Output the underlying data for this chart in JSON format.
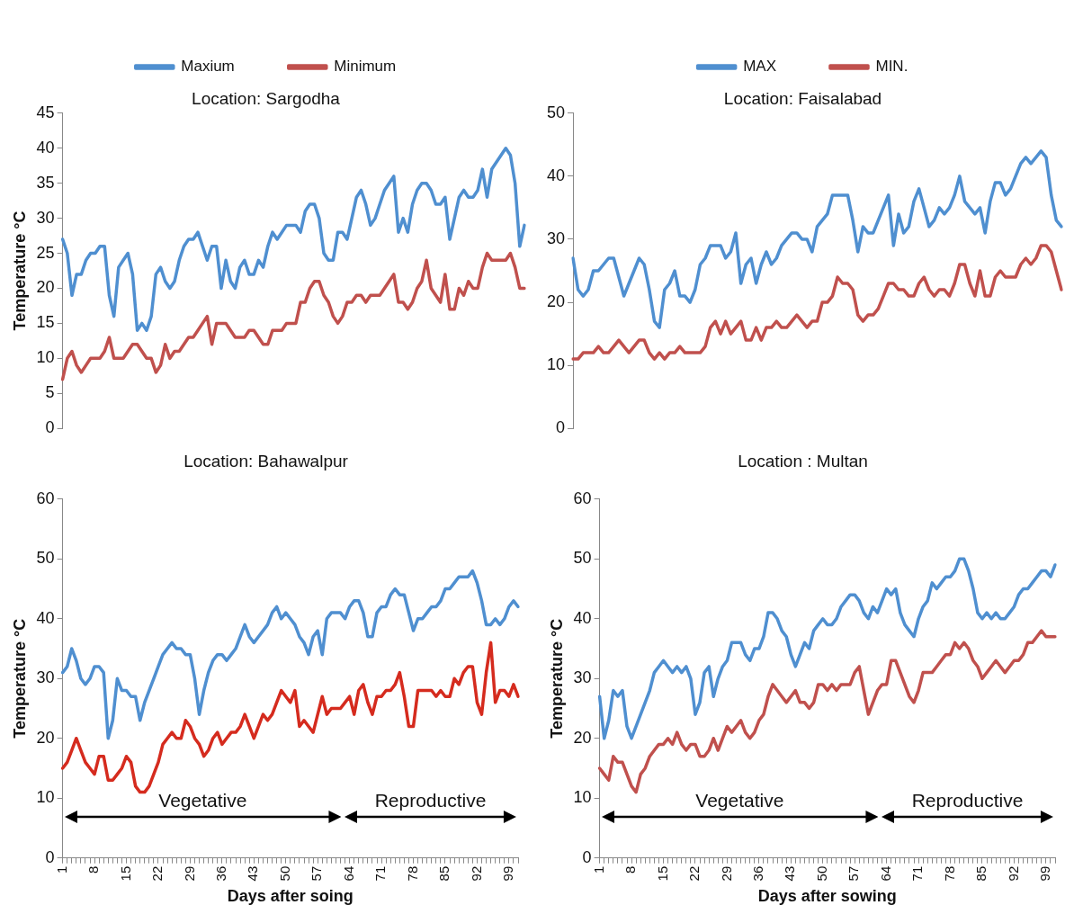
{
  "chart_data": [
    {
      "type": "line",
      "title": "Location: Sargodha",
      "ylabel": "Temperature °C",
      "legend": "top",
      "tick_labels": "y",
      "grid": false,
      "ylim": [
        0,
        45
      ],
      "yticks": [
        0,
        5,
        10,
        15,
        20,
        25,
        30,
        35,
        40,
        45
      ],
      "categories": [
        null,
        null,
        null,
        null,
        null,
        null,
        null,
        null,
        null,
        null,
        null,
        null,
        null,
        null,
        null,
        null,
        null,
        null,
        null,
        null,
        null,
        null,
        null,
        null,
        null,
        null,
        null,
        null,
        null,
        null,
        null,
        null,
        null,
        null,
        null,
        null,
        null,
        null,
        null,
        null,
        null,
        null,
        null,
        null,
        null,
        null,
        null,
        null,
        null,
        null,
        null,
        null,
        null,
        null,
        null,
        null,
        null,
        null,
        null,
        null,
        null,
        null,
        null,
        null,
        null,
        null,
        null,
        null,
        null,
        null,
        null,
        null,
        null,
        null,
        null,
        null,
        null,
        null,
        null,
        null,
        null,
        null,
        null,
        null,
        null,
        null,
        null,
        null,
        null,
        null,
        null,
        null,
        null,
        null,
        null,
        null,
        null,
        null,
        null,
        null
      ],
      "series": [
        {
          "name": "Maxium",
          "color": "#4f8fd0",
          "values": [
            27,
            25,
            19,
            22,
            22,
            24,
            25,
            25,
            26,
            26,
            19,
            16,
            23,
            24,
            25,
            22,
            14,
            15,
            14,
            16,
            22,
            23,
            21,
            20,
            21,
            24,
            26,
            27,
            27,
            28,
            26,
            24,
            26,
            26,
            20,
            24,
            21,
            20,
            23,
            24,
            22,
            22,
            24,
            23,
            26,
            28,
            27,
            28,
            29,
            29,
            29,
            28,
            31,
            32,
            32,
            30,
            25,
            24,
            24,
            28,
            28,
            27,
            30,
            33,
            34,
            32,
            29,
            30,
            32,
            34,
            35,
            36,
            28,
            30,
            28,
            32,
            34,
            35,
            35,
            34,
            32,
            32,
            33,
            27,
            30,
            33,
            34,
            33,
            33,
            34,
            37,
            33,
            37,
            38,
            39,
            40,
            39,
            35,
            26,
            29
          ]
        },
        {
          "name": "Minimum",
          "color": "#c0504d",
          "values": [
            7,
            10,
            11,
            9,
            8,
            9,
            10,
            10,
            10,
            11,
            13,
            10,
            10,
            10,
            11,
            12,
            12,
            11,
            10,
            10,
            8,
            9,
            12,
            10,
            11,
            11,
            12,
            13,
            13,
            14,
            15,
            16,
            12,
            15,
            15,
            15,
            14,
            13,
            13,
            13,
            14,
            14,
            13,
            12,
            12,
            14,
            14,
            14,
            15,
            15,
            15,
            18,
            18,
            20,
            21,
            21,
            19,
            18,
            16,
            15,
            16,
            18,
            18,
            19,
            19,
            18,
            19,
            19,
            19,
            20,
            21,
            22,
            18,
            18,
            17,
            18,
            20,
            21,
            24,
            20,
            19,
            18,
            22,
            17,
            17,
            20,
            19,
            21,
            20,
            20,
            23,
            25,
            24,
            24,
            24,
            24,
            25,
            23,
            20,
            20
          ]
        }
      ]
    },
    {
      "type": "line",
      "title": "Location: Faisalabad",
      "legend": "top",
      "tick_labels": "y",
      "grid": false,
      "ylim": [
        0,
        50
      ],
      "yticks": [
        0,
        10,
        20,
        30,
        40,
        50
      ],
      "categories": [
        null,
        null,
        null,
        null,
        null,
        null,
        null,
        null,
        null,
        null,
        null,
        null,
        null,
        null,
        null,
        null,
        null,
        null,
        null,
        null,
        null,
        null,
        null,
        null,
        null,
        null,
        null,
        null,
        null,
        null,
        null,
        null,
        null,
        null,
        null,
        null,
        null,
        null,
        null,
        null,
        null,
        null,
        null,
        null,
        null,
        null,
        null,
        null,
        null,
        null,
        null,
        null,
        null,
        null,
        null,
        null,
        null,
        null,
        null,
        null,
        null,
        null,
        null,
        null,
        null,
        null,
        null,
        null,
        null,
        null,
        null,
        null,
        null,
        null,
        null,
        null,
        null,
        null,
        null,
        null,
        null,
        null,
        null,
        null,
        null,
        null,
        null,
        null,
        null,
        null,
        null,
        null,
        null,
        null,
        null,
        null,
        null
      ],
      "series": [
        {
          "name": "MAX",
          "color": "#4f8fd0",
          "values": [
            27,
            22,
            21,
            22,
            25,
            25,
            26,
            27,
            27,
            24,
            21,
            23,
            25,
            27,
            26,
            22,
            17,
            16,
            22,
            23,
            25,
            21,
            21,
            20,
            22,
            26,
            27,
            29,
            29,
            29,
            27,
            28,
            31,
            23,
            26,
            27,
            23,
            26,
            28,
            26,
            27,
            29,
            30,
            31,
            31,
            30,
            30,
            28,
            32,
            33,
            34,
            37,
            37,
            37,
            37,
            33,
            28,
            32,
            31,
            31,
            33,
            35,
            37,
            29,
            34,
            31,
            32,
            36,
            38,
            35,
            32,
            33,
            35,
            34,
            35,
            37,
            40,
            36,
            35,
            34,
            35,
            31,
            36,
            39,
            39,
            37,
            38,
            40,
            42,
            43,
            42,
            43,
            44,
            43,
            37,
            33,
            32
          ]
        },
        {
          "name": "MIN.",
          "color": "#c0504d",
          "values": [
            11,
            11,
            12,
            12,
            12,
            13,
            12,
            12,
            13,
            14,
            13,
            12,
            13,
            14,
            14,
            12,
            11,
            12,
            11,
            12,
            12,
            13,
            12,
            12,
            12,
            12,
            13,
            16,
            17,
            15,
            17,
            15,
            16,
            17,
            14,
            14,
            16,
            14,
            16,
            16,
            17,
            16,
            16,
            17,
            18,
            17,
            16,
            17,
            17,
            20,
            20,
            21,
            24,
            23,
            23,
            22,
            18,
            17,
            18,
            18,
            19,
            21,
            23,
            23,
            22,
            22,
            21,
            21,
            23,
            24,
            22,
            21,
            22,
            22,
            21,
            23,
            26,
            26,
            23,
            21,
            25,
            21,
            21,
            24,
            25,
            24,
            24,
            24,
            26,
            27,
            26,
            27,
            29,
            29,
            28,
            25,
            22
          ]
        }
      ]
    },
    {
      "type": "line",
      "title": "Location: Bahawalpur",
      "ylabel": "Temperature °C",
      "xlabel": "Days after soing",
      "grid": false,
      "ylim": [
        0,
        60
      ],
      "yticks": [
        0,
        10,
        20,
        30,
        40,
        50,
        60
      ],
      "annotations": [
        "Vegetative",
        "Reproductive"
      ],
      "categories": [
        "1",
        null,
        null,
        null,
        null,
        null,
        null,
        "8",
        null,
        null,
        null,
        null,
        null,
        null,
        "15",
        null,
        null,
        null,
        null,
        null,
        null,
        "22",
        null,
        null,
        null,
        null,
        null,
        null,
        "29",
        null,
        null,
        null,
        null,
        null,
        null,
        "36",
        null,
        null,
        null,
        null,
        null,
        null,
        "43",
        null,
        null,
        null,
        null,
        null,
        null,
        "50",
        null,
        null,
        null,
        null,
        null,
        null,
        "57",
        null,
        null,
        null,
        null,
        null,
        null,
        "64",
        null,
        null,
        null,
        null,
        null,
        null,
        "71",
        null,
        null,
        null,
        null,
        null,
        null,
        "78",
        null,
        null,
        null,
        null,
        null,
        null,
        "85",
        null,
        null,
        null,
        null,
        null,
        null,
        "92",
        null,
        null,
        null,
        null,
        null,
        null,
        "99",
        null,
        null
      ],
      "series": [
        {
          "color": "#4f8fd0",
          "values": [
            31,
            32,
            35,
            33,
            30,
            29,
            30,
            32,
            32,
            31,
            20,
            23,
            30,
            28,
            28,
            27,
            27,
            23,
            26,
            28,
            30,
            32,
            34,
            35,
            36,
            35,
            35,
            34,
            34,
            30,
            24,
            28,
            31,
            33,
            34,
            34,
            33,
            34,
            35,
            37,
            39,
            37,
            36,
            37,
            38,
            39,
            41,
            42,
            40,
            41,
            40,
            39,
            37,
            36,
            34,
            37,
            38,
            34,
            40,
            41,
            41,
            41,
            40,
            42,
            43,
            43,
            41,
            37,
            37,
            41,
            42,
            42,
            44,
            45,
            44,
            44,
            41,
            38,
            40,
            40,
            41,
            42,
            42,
            43,
            45,
            45,
            46,
            47,
            47,
            47,
            48,
            46,
            43,
            39,
            39,
            40,
            39,
            40,
            42,
            43,
            42
          ]
        },
        {
          "color": "#d52b1e",
          "values": [
            15,
            16,
            18,
            20,
            18,
            16,
            15,
            14,
            17,
            17,
            13,
            13,
            14,
            15,
            17,
            16,
            12,
            11,
            11,
            12,
            14,
            16,
            19,
            20,
            21,
            20,
            20,
            23,
            22,
            20,
            19,
            17,
            18,
            20,
            21,
            19,
            20,
            21,
            21,
            22,
            24,
            22,
            20,
            22,
            24,
            23,
            24,
            26,
            28,
            27,
            26,
            28,
            22,
            23,
            22,
            21,
            24,
            27,
            24,
            25,
            25,
            25,
            26,
            27,
            24,
            28,
            29,
            26,
            24,
            27,
            27,
            28,
            28,
            29,
            31,
            27,
            22,
            22,
            28,
            28,
            28,
            28,
            27,
            28,
            27,
            27,
            30,
            29,
            31,
            32,
            32,
            26,
            24,
            31,
            36,
            26,
            28,
            28,
            27,
            29,
            27
          ]
        }
      ]
    },
    {
      "type": "line",
      "title": "Location : Multan",
      "ylabel": "Temperature °C",
      "xlabel": "Days after sowing",
      "grid": false,
      "ylim": [
        0,
        60
      ],
      "yticks": [
        0,
        10,
        20,
        30,
        40,
        50,
        60
      ],
      "annotations": [
        "Vegetative",
        "Reproductive"
      ],
      "categories": [
        "1",
        null,
        null,
        null,
        null,
        null,
        null,
        "8",
        null,
        null,
        null,
        null,
        null,
        null,
        "15",
        null,
        null,
        null,
        null,
        null,
        null,
        "22",
        null,
        null,
        null,
        null,
        null,
        null,
        "29",
        null,
        null,
        null,
        null,
        null,
        null,
        "36",
        null,
        null,
        null,
        null,
        null,
        null,
        "43",
        null,
        null,
        null,
        null,
        null,
        null,
        "50",
        null,
        null,
        null,
        null,
        null,
        null,
        "57",
        null,
        null,
        null,
        null,
        null,
        null,
        "64",
        null,
        null,
        null,
        null,
        null,
        null,
        "71",
        null,
        null,
        null,
        null,
        null,
        null,
        "78",
        null,
        null,
        null,
        null,
        null,
        null,
        "85",
        null,
        null,
        null,
        null,
        null,
        null,
        "92",
        null,
        null,
        null,
        null,
        null,
        null,
        "99",
        null,
        null
      ],
      "series": [
        {
          "color": "#4f8fd0",
          "values": [
            27,
            20,
            23,
            28,
            27,
            28,
            22,
            20,
            22,
            24,
            26,
            28,
            31,
            32,
            33,
            32,
            31,
            32,
            31,
            32,
            30,
            24,
            26,
            31,
            32,
            27,
            30,
            32,
            33,
            36,
            36,
            36,
            34,
            33,
            35,
            35,
            37,
            41,
            41,
            40,
            38,
            37,
            34,
            32,
            34,
            36,
            35,
            38,
            39,
            40,
            39,
            39,
            40,
            42,
            43,
            44,
            44,
            43,
            41,
            40,
            42,
            41,
            43,
            45,
            44,
            45,
            41,
            39,
            38,
            37,
            40,
            42,
            43,
            46,
            45,
            46,
            47,
            47,
            48,
            50,
            50,
            48,
            45,
            41,
            40,
            41,
            40,
            41,
            40,
            40,
            41,
            42,
            44,
            45,
            45,
            46,
            47,
            48,
            48,
            47,
            49
          ]
        },
        {
          "color": "#c0504d",
          "values": [
            15,
            14,
            13,
            17,
            16,
            16,
            14,
            12,
            11,
            14,
            15,
            17,
            18,
            19,
            19,
            20,
            19,
            21,
            19,
            18,
            19,
            19,
            17,
            17,
            18,
            20,
            18,
            20,
            22,
            21,
            22,
            23,
            21,
            20,
            21,
            23,
            24,
            27,
            29,
            28,
            27,
            26,
            27,
            28,
            26,
            26,
            25,
            26,
            29,
            29,
            28,
            29,
            28,
            29,
            29,
            29,
            31,
            32,
            28,
            24,
            26,
            28,
            29,
            29,
            33,
            33,
            31,
            29,
            27,
            26,
            28,
            31,
            31,
            31,
            32,
            33,
            34,
            34,
            36,
            35,
            36,
            35,
            33,
            32,
            30,
            31,
            32,
            33,
            32,
            31,
            32,
            33,
            33,
            34,
            36,
            36,
            37,
            38,
            37,
            37,
            37
          ]
        }
      ]
    }
  ]
}
